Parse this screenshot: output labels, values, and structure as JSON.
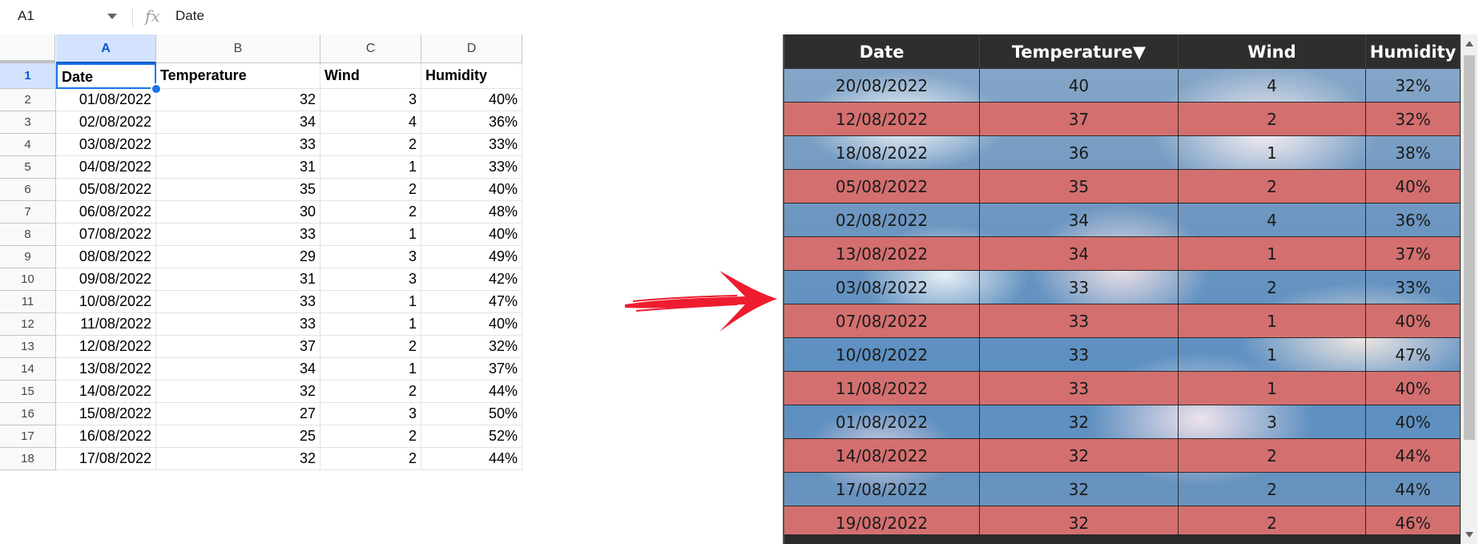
{
  "formula_bar": {
    "cell_ref": "A1",
    "fx_label": "fx",
    "value": "Date"
  },
  "sheet": {
    "columns": [
      "A",
      "B",
      "C",
      "D"
    ],
    "header_row": {
      "num": "1",
      "cells": [
        "Date",
        "Temperature",
        "Wind",
        "Humidity"
      ]
    },
    "rows": [
      {
        "num": "2",
        "cells": [
          "01/08/2022",
          "32",
          "3",
          "40%"
        ]
      },
      {
        "num": "3",
        "cells": [
          "02/08/2022",
          "34",
          "4",
          "36%"
        ]
      },
      {
        "num": "4",
        "cells": [
          "03/08/2022",
          "33",
          "2",
          "33%"
        ]
      },
      {
        "num": "5",
        "cells": [
          "04/08/2022",
          "31",
          "1",
          "33%"
        ]
      },
      {
        "num": "6",
        "cells": [
          "05/08/2022",
          "35",
          "2",
          "40%"
        ]
      },
      {
        "num": "7",
        "cells": [
          "06/08/2022",
          "30",
          "2",
          "48%"
        ]
      },
      {
        "num": "8",
        "cells": [
          "07/08/2022",
          "33",
          "1",
          "40%"
        ]
      },
      {
        "num": "9",
        "cells": [
          "08/08/2022",
          "29",
          "3",
          "49%"
        ]
      },
      {
        "num": "10",
        "cells": [
          "09/08/2022",
          "31",
          "3",
          "42%"
        ]
      },
      {
        "num": "11",
        "cells": [
          "10/08/2022",
          "33",
          "1",
          "47%"
        ]
      },
      {
        "num": "12",
        "cells": [
          "11/08/2022",
          "33",
          "1",
          "40%"
        ]
      },
      {
        "num": "13",
        "cells": [
          "12/08/2022",
          "37",
          "2",
          "32%"
        ]
      },
      {
        "num": "14",
        "cells": [
          "13/08/2022",
          "34",
          "1",
          "37%"
        ]
      },
      {
        "num": "15",
        "cells": [
          "14/08/2022",
          "32",
          "2",
          "44%"
        ]
      },
      {
        "num": "16",
        "cells": [
          "15/08/2022",
          "27",
          "3",
          "50%"
        ]
      },
      {
        "num": "17",
        "cells": [
          "16/08/2022",
          "25",
          "2",
          "52%"
        ]
      },
      {
        "num": "18",
        "cells": [
          "17/08/2022",
          "32",
          "2",
          "44%"
        ]
      }
    ]
  },
  "styled_table": {
    "headers": [
      "Date",
      "Temperature▼",
      "Wind",
      "Humidity"
    ],
    "rows": [
      [
        "20/08/2022",
        "40",
        "4",
        "32%"
      ],
      [
        "12/08/2022",
        "37",
        "2",
        "32%"
      ],
      [
        "18/08/2022",
        "36",
        "1",
        "38%"
      ],
      [
        "05/08/2022",
        "35",
        "2",
        "40%"
      ],
      [
        "02/08/2022",
        "34",
        "4",
        "36%"
      ],
      [
        "13/08/2022",
        "34",
        "1",
        "37%"
      ],
      [
        "03/08/2022",
        "33",
        "2",
        "33%"
      ],
      [
        "07/08/2022",
        "33",
        "1",
        "40%"
      ],
      [
        "10/08/2022",
        "33",
        "1",
        "47%"
      ],
      [
        "11/08/2022",
        "33",
        "1",
        "40%"
      ],
      [
        "01/08/2022",
        "32",
        "3",
        "40%"
      ],
      [
        "14/08/2022",
        "32",
        "2",
        "44%"
      ],
      [
        "17/08/2022",
        "32",
        "2",
        "44%"
      ],
      [
        "19/08/2022",
        "32",
        "2",
        "46%"
      ]
    ],
    "colors": {
      "header_bg": "#2e2e2e",
      "even_row_bg": "#d46f6f",
      "arrow": "#ee1c2e"
    }
  }
}
